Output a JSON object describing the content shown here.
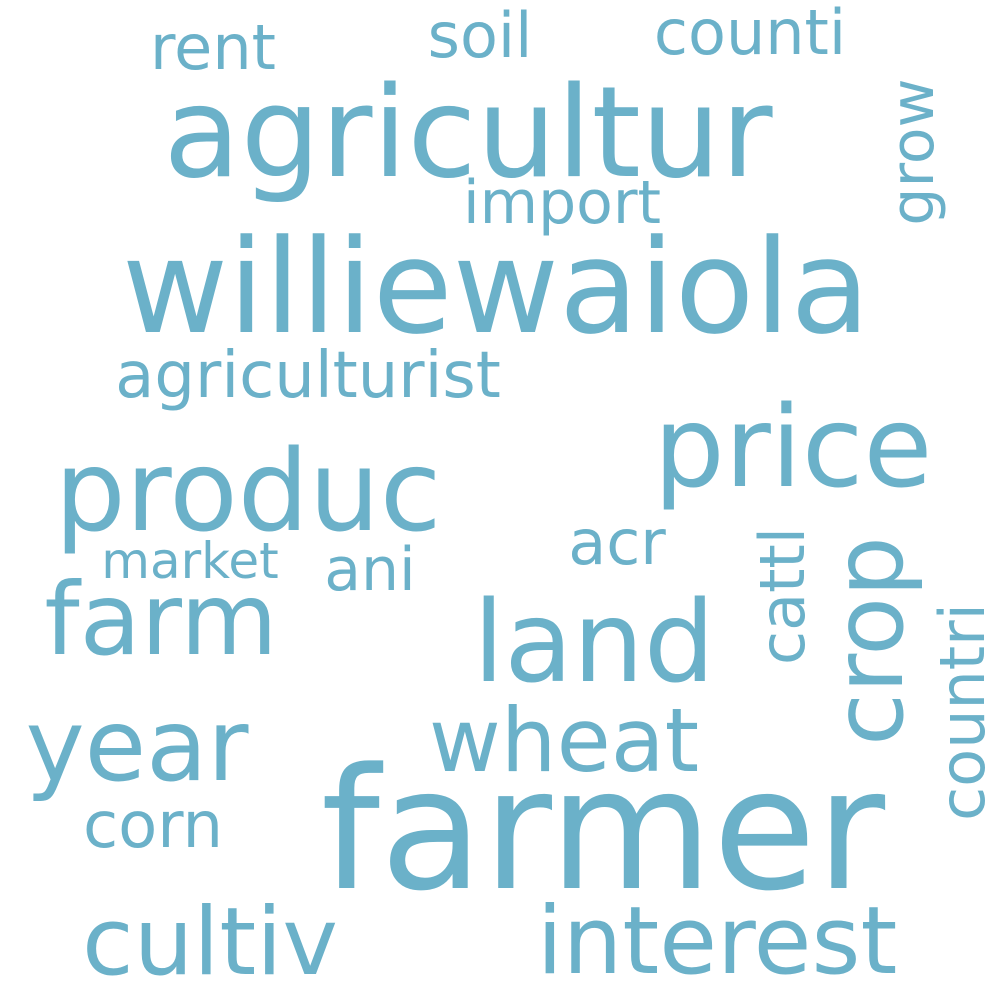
{
  "word_color": "#6bb1c9",
  "background": "#ffffff",
  "words": {
    "agricultur": "agricultur",
    "williewaiola": "williewaiola",
    "farmer": "farmer",
    "price": "price",
    "produc": "produc",
    "land": "land",
    "farm": "farm",
    "year": "year",
    "wheat": "wheat",
    "crop": "crop",
    "cultiv": "cultiv",
    "interest": "interest",
    "agriculturist": "agriculturist",
    "rent": "rent",
    "soil": "soil",
    "counti": "counti",
    "import": "import",
    "grow": "grow",
    "acr": "acr",
    "market": "market",
    "ani": "ani",
    "cattl": "cattl",
    "countri": "countri",
    "corn": "corn"
  }
}
